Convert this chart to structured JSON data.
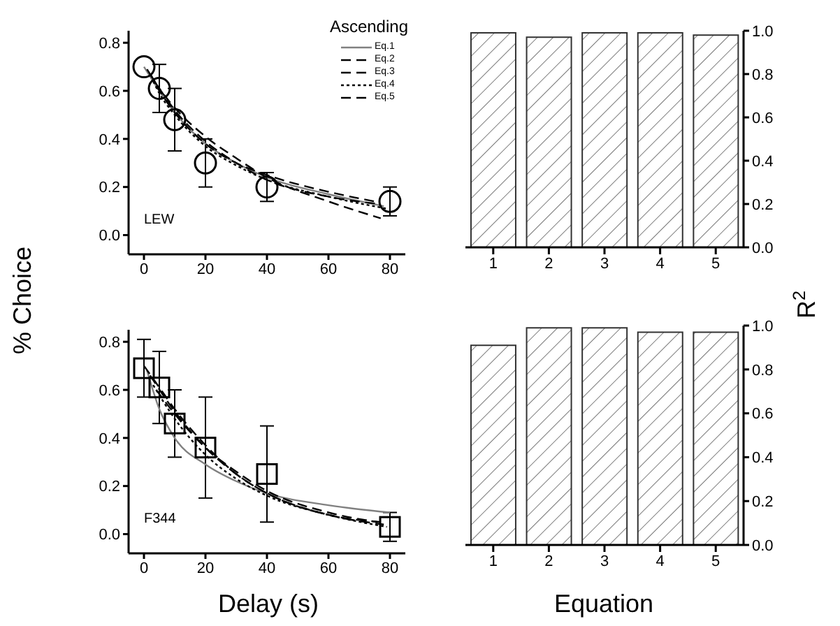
{
  "chart_data": [
    {
      "type": "line",
      "ylabel": "% Choice",
      "legend_title": "Ascending",
      "legend": "top right",
      "annotations": [
        "LEW"
      ],
      "xlim": [
        -5,
        85
      ],
      "xticks": [
        0,
        20,
        40,
        60,
        80
      ],
      "ylim": [
        -0.08,
        0.85
      ],
      "yticks": [
        {
          "value": 0,
          "label": "0.0"
        },
        {
          "value": 0.2,
          "label": "0.2"
        },
        {
          "value": 0.4,
          "label": "0.4"
        },
        {
          "value": 0.6,
          "label": "0.6"
        },
        {
          "value": 0.8,
          "label": "0.8"
        }
      ],
      "grid": false,
      "series": [
        {
          "type": "scatter",
          "marker": "circle",
          "color": "#000000",
          "x": [
            0,
            5,
            10,
            20,
            40,
            80
          ],
          "values": [
            0.7,
            0.61,
            0.48,
            0.3,
            0.2,
            0.14
          ],
          "errors": [
            null,
            0.1,
            0.13,
            0.1,
            0.06,
            0.06
          ]
        },
        {
          "name": "Eq.1",
          "color": "#808080",
          "line_style": "solid",
          "x": [
            0,
            5,
            10,
            20,
            30,
            40,
            60,
            78
          ],
          "values": [
            0.7,
            0.6,
            0.51,
            0.38,
            0.3,
            0.24,
            0.17,
            0.12
          ]
        },
        {
          "name": "Eq.2",
          "color": "#000000",
          "line_style": "dashed",
          "x": [
            1,
            5,
            10,
            20,
            30,
            40,
            60,
            77
          ],
          "values": [
            0.69,
            0.61,
            0.53,
            0.41,
            0.32,
            0.24,
            0.14,
            0.07
          ]
        },
        {
          "name": "Eq.3",
          "color": "#000000",
          "line_style": "dashed",
          "x": [
            2,
            5,
            10,
            20,
            30,
            40,
            60,
            76
          ],
          "values": [
            0.67,
            0.61,
            0.52,
            0.39,
            0.3,
            0.23,
            0.16,
            0.13
          ]
        },
        {
          "name": "Eq.4",
          "color": "#000000",
          "line_style": "dotted",
          "x": [
            3,
            5,
            10,
            20,
            30,
            40,
            60,
            79
          ],
          "values": [
            0.64,
            0.59,
            0.5,
            0.37,
            0.29,
            0.23,
            0.16,
            0.11
          ]
        },
        {
          "name": "Eq.5",
          "color": "#000000",
          "line_style": "dashed",
          "x": [
            4,
            10,
            20,
            30,
            40,
            60,
            75
          ],
          "values": [
            0.62,
            0.51,
            0.38,
            0.3,
            0.25,
            0.18,
            0.14
          ]
        }
      ]
    },
    {
      "type": "bar",
      "ylabel": "R$^{2}$",
      "categories": [
        "1",
        "2",
        "3",
        "4",
        "5"
      ],
      "values": [
        0.99,
        0.97,
        0.99,
        0.99,
        0.98
      ],
      "ylim": [
        0,
        1
      ],
      "yticks": [
        {
          "value": 0,
          "label": "0.0"
        },
        {
          "value": 0.2,
          "label": "0.2"
        },
        {
          "value": 0.4,
          "label": "0.4"
        },
        {
          "value": 0.6,
          "label": "0.6"
        },
        {
          "value": 0.8,
          "label": "0.8"
        },
        {
          "value": 1,
          "label": "1.0"
        }
      ],
      "grid": false
    },
    {
      "type": "line",
      "xlabel": "Delay (s)",
      "annotations": [
        "F344"
      ],
      "xlim": [
        -5,
        85
      ],
      "xticks": [
        0,
        20,
        40,
        60,
        80
      ],
      "ylim": [
        -0.08,
        0.85
      ],
      "yticks": [
        {
          "value": 0,
          "label": "0.0"
        },
        {
          "value": 0.2,
          "label": "0.2"
        },
        {
          "value": 0.4,
          "label": "0.4"
        },
        {
          "value": 0.6,
          "label": "0.6"
        },
        {
          "value": 0.8,
          "label": "0.8"
        }
      ],
      "grid": false,
      "series": [
        {
          "type": "scatter",
          "marker": "square",
          "color": "#000000",
          "x": [
            0,
            5,
            10,
            20,
            40,
            80
          ],
          "values": [
            0.69,
            0.61,
            0.46,
            0.36,
            0.25,
            0.03
          ],
          "errors": [
            0.12,
            0.15,
            0.14,
            0.21,
            0.2,
            0.06
          ]
        },
        {
          "color": "#808080",
          "line_style": "solid",
          "x": [
            1,
            5,
            10,
            20,
            30,
            40,
            60,
            80
          ],
          "values": [
            0.68,
            0.52,
            0.4,
            0.29,
            0.22,
            0.17,
            0.12,
            0.09
          ]
        },
        {
          "color": "#000000",
          "line_style": "dashed",
          "x": [
            0,
            5,
            10,
            20,
            30,
            40,
            60,
            78
          ],
          "values": [
            0.7,
            0.61,
            0.52,
            0.37,
            0.25,
            0.17,
            0.08,
            0.04
          ]
        },
        {
          "color": "#000000",
          "line_style": "dashed",
          "x": [
            2,
            10,
            20,
            30,
            40,
            60,
            77
          ],
          "values": [
            0.66,
            0.51,
            0.36,
            0.25,
            0.17,
            0.08,
            0.05
          ]
        },
        {
          "color": "#000000",
          "line_style": "dotted",
          "x": [
            3,
            10,
            20,
            30,
            40,
            60,
            79
          ],
          "values": [
            0.62,
            0.48,
            0.33,
            0.23,
            0.16,
            0.08,
            0.03
          ]
        },
        {
          "color": "#000000",
          "line_style": "dashed",
          "x": [
            4,
            10,
            20,
            30,
            40,
            60,
            76
          ],
          "values": [
            0.6,
            0.5,
            0.36,
            0.26,
            0.18,
            0.09,
            0.05
          ]
        }
      ]
    },
    {
      "type": "bar",
      "xlabel": "Equation",
      "categories": [
        "1",
        "2",
        "3",
        "4",
        "5"
      ],
      "values": [
        0.91,
        0.99,
        0.99,
        0.97,
        0.97
      ],
      "ylim": [
        0,
        1
      ],
      "yticks": [
        {
          "value": 0,
          "label": "0.0"
        },
        {
          "value": 0.2,
          "label": "0.2"
        },
        {
          "value": 0.4,
          "label": "0.4"
        },
        {
          "value": 0.6,
          "label": "0.6"
        },
        {
          "value": 0.8,
          "label": "0.8"
        },
        {
          "value": 1,
          "label": "1.0"
        }
      ],
      "grid": false
    }
  ]
}
